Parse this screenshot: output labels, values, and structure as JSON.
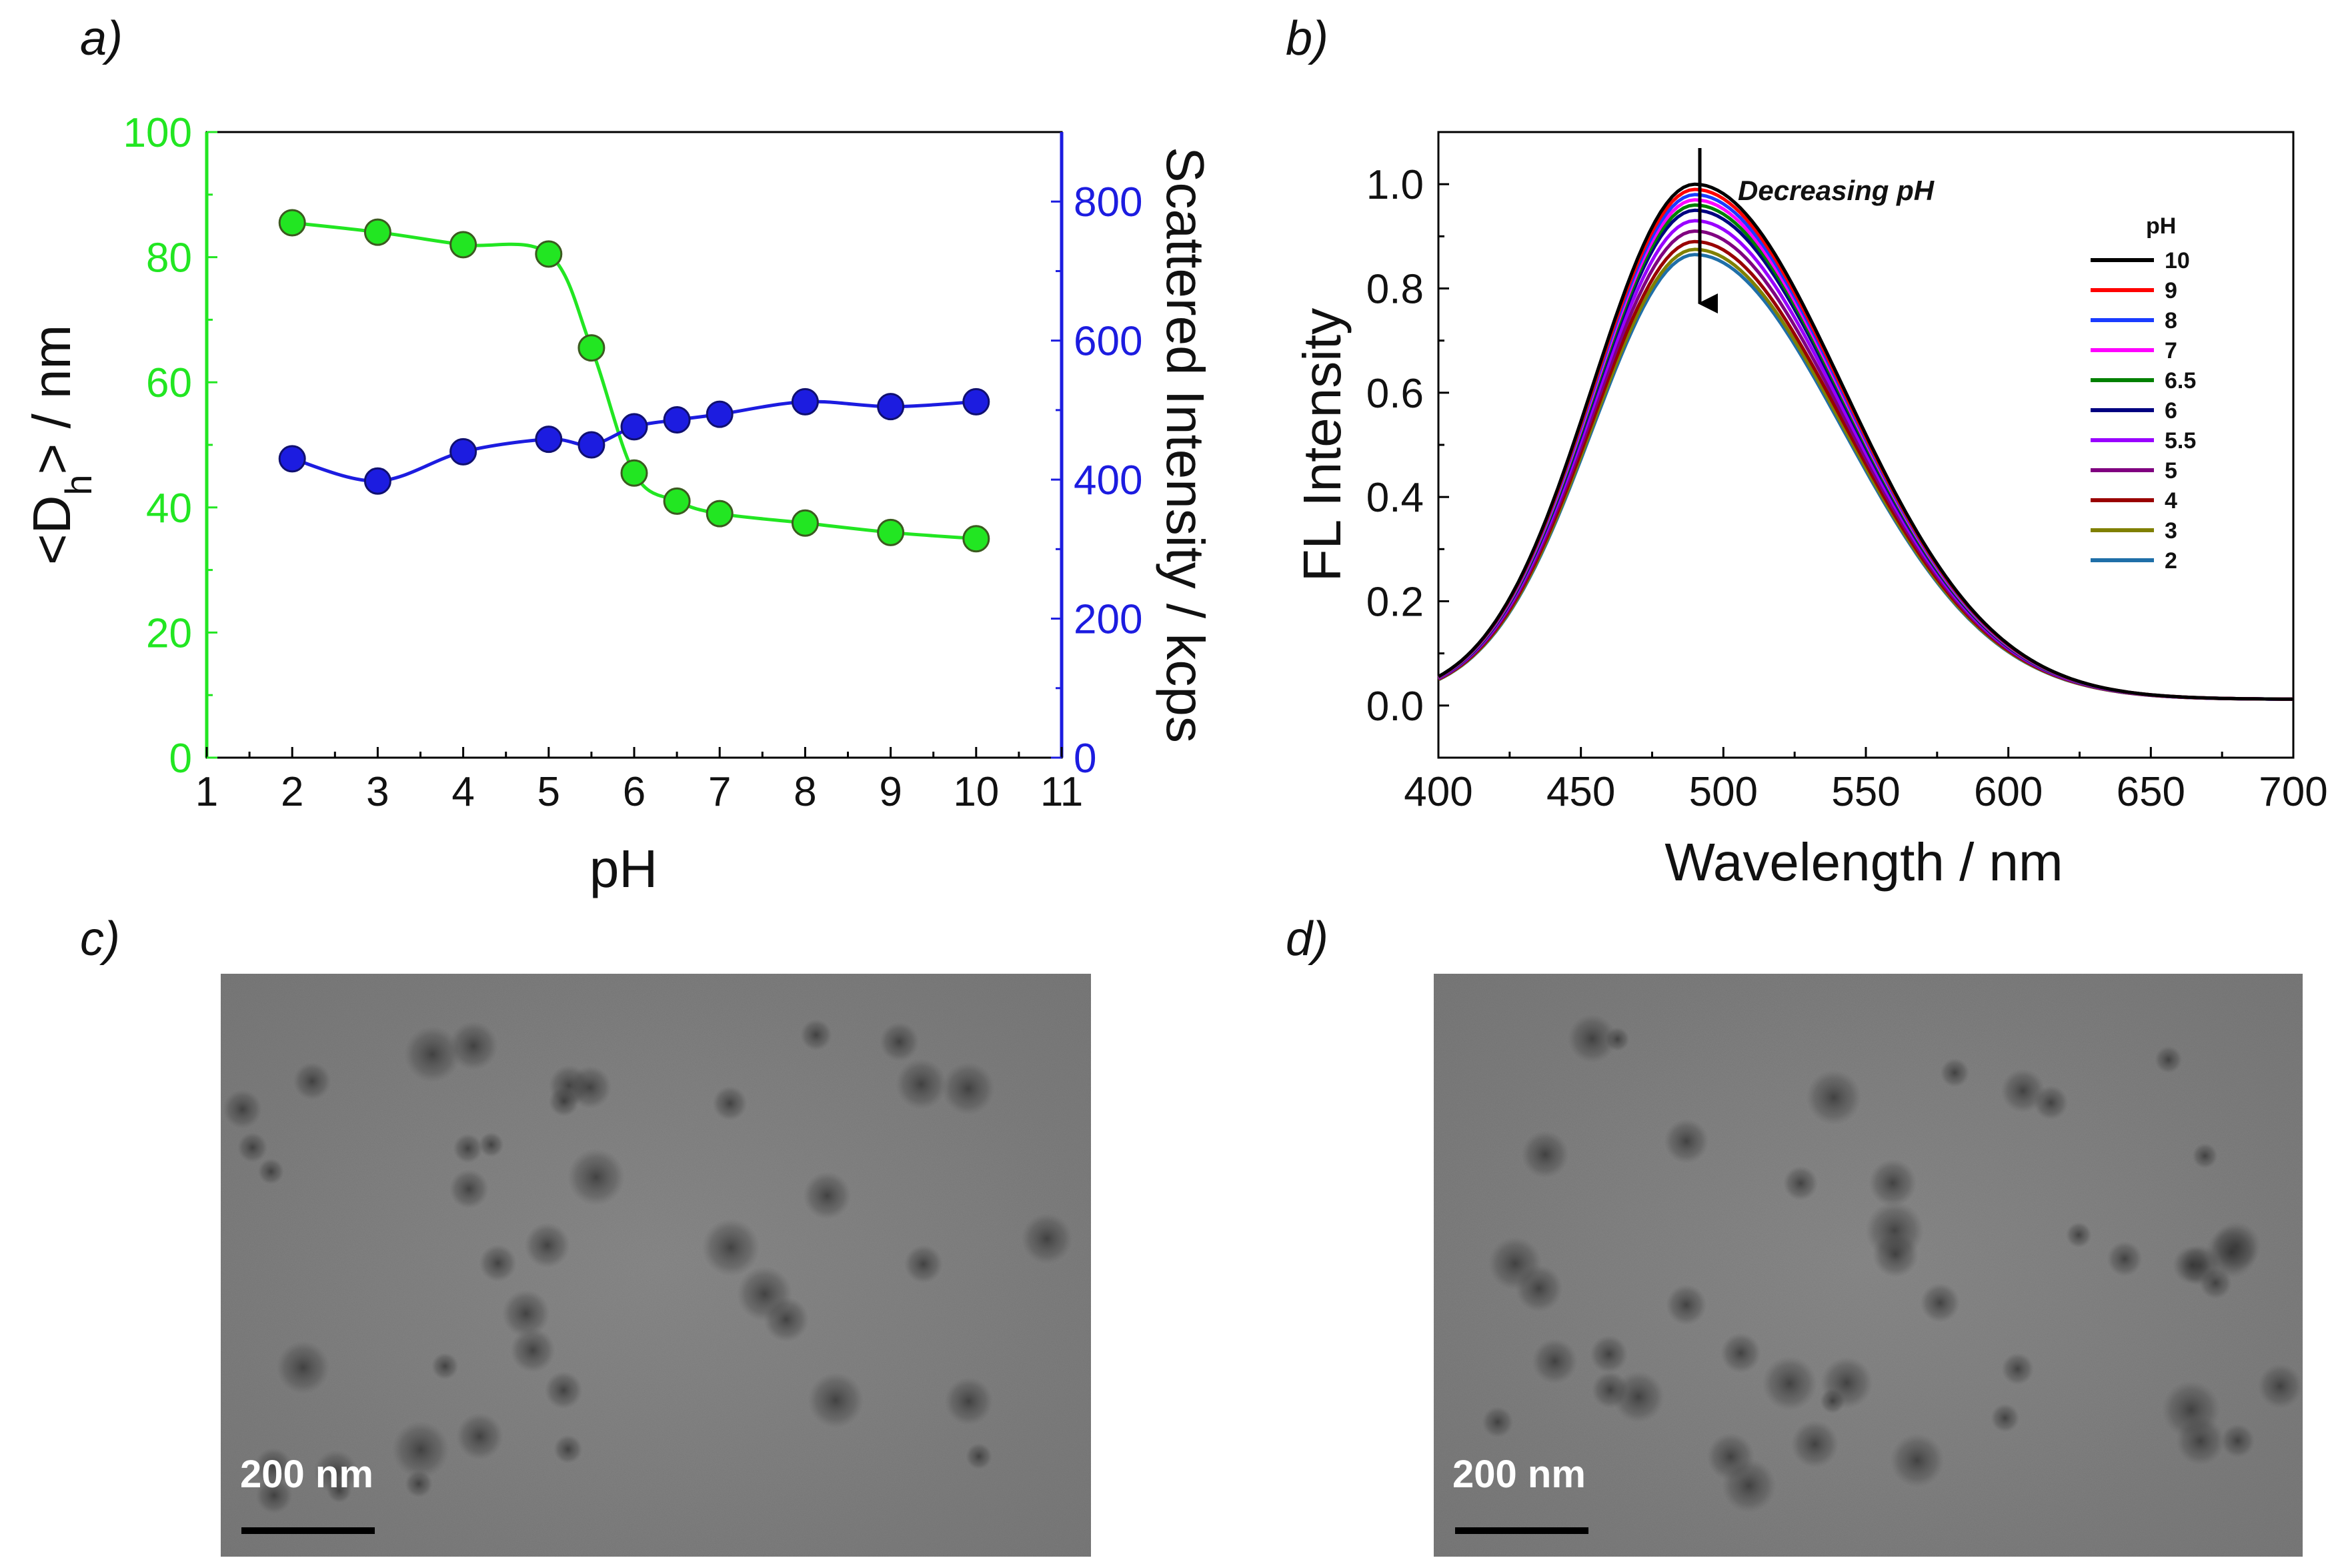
{
  "chart_data": [
    {
      "panel": "a)",
      "type": "scatter",
      "x_label": "pH",
      "x_ticks": [
        "1",
        "2",
        "3",
        "4",
        "5",
        "6",
        "7",
        "8",
        "9",
        "10",
        "11"
      ],
      "xlim": [
        1,
        11
      ],
      "y_left_label_prefix": "<D",
      "y_left_label_sub": "h",
      "y_left_label_suffix": "> / nm",
      "y_left_ticks": [
        "0",
        "20",
        "40",
        "60",
        "80",
        "100"
      ],
      "y_left_lim": [
        0,
        100
      ],
      "y_right_label": "Scattered Intensity / kcps",
      "y_right_ticks": [
        "0",
        "200",
        "400",
        "600",
        "800"
      ],
      "y_right_lim": [
        0,
        900
      ],
      "series": [
        {
          "name": "<Dh> / nm",
          "axis": "left",
          "color": "#22e622",
          "x": [
            2,
            3,
            4,
            5,
            5.5,
            6,
            6.5,
            7,
            8,
            9,
            10
          ],
          "y": [
            85.5,
            84,
            82,
            80.5,
            65.5,
            45.5,
            41,
            39,
            37.5,
            36,
            35
          ]
        },
        {
          "name": "Scattered Intensity / kcps",
          "axis": "right",
          "color": "#1c1ce0",
          "x": [
            2,
            3,
            4,
            5,
            5.5,
            6,
            6.5,
            7,
            8,
            9,
            10
          ],
          "y": [
            430,
            398,
            440,
            458,
            450,
            476,
            486,
            494,
            512,
            505,
            512
          ]
        }
      ]
    },
    {
      "panel": "b)",
      "type": "line",
      "x_label": "Wavelength / nm",
      "y_label": "FL Intensity",
      "x_ticks": [
        "400",
        "450",
        "500",
        "550",
        "600",
        "650",
        "700"
      ],
      "xlim": [
        400,
        700
      ],
      "y_ticks": [
        "0.0",
        "0.2",
        "0.4",
        "0.6",
        "0.8",
        "1.0"
      ],
      "ylim": [
        -0.1,
        1.1
      ],
      "annotation": "Decreasing pH",
      "legend_title": "pH",
      "legend_position": "right",
      "peak_wavelength": 490,
      "series": [
        {
          "name": "10",
          "color": "#000000",
          "peak": 1.0
        },
        {
          "name": "9",
          "color": "#ff0000",
          "peak": 0.99
        },
        {
          "name": "8",
          "color": "#1a3cff",
          "peak": 0.98
        },
        {
          "name": "7",
          "color": "#ff00ff",
          "peak": 0.97
        },
        {
          "name": "6.5",
          "color": "#008000",
          "peak": 0.96
        },
        {
          "name": "6",
          "color": "#000080",
          "peak": 0.95
        },
        {
          "name": "5.5",
          "color": "#9900ff",
          "peak": 0.93
        },
        {
          "name": "5",
          "color": "#800080",
          "peak": 0.91
        },
        {
          "name": "4",
          "color": "#990000",
          "peak": 0.89
        },
        {
          "name": "3",
          "color": "#808000",
          "peak": 0.875
        },
        {
          "name": "2",
          "color": "#1f6fa8",
          "peak": 0.865
        }
      ]
    }
  ],
  "images": [
    {
      "panel": "c)",
      "scale_label": "200 nm"
    },
    {
      "panel": "d)",
      "scale_label": "200 nm"
    }
  ]
}
